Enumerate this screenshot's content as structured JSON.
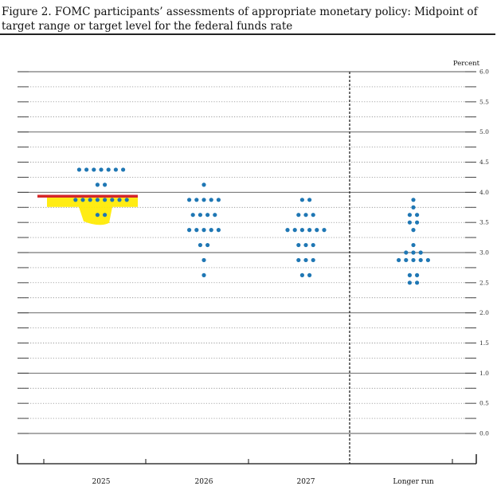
{
  "figure": {
    "title": "Figure 2.  FOMC participants’ assessments of appropriate monetary policy: Midpoint of target range or target level for the federal funds rate"
  },
  "chart_data": {
    "type": "scatter",
    "title": "Figure 2.  FOMC participants’ assessments of appropriate monetary policy: Midpoint of target range or target level for the federal funds rate",
    "ylabel": "Percent",
    "ylim": [
      0.0,
      6.0
    ],
    "yticks": [
      "0.0",
      "0.5",
      "1.0",
      "1.5",
      "2.0",
      "2.5",
      "3.0",
      "3.5",
      "4.0",
      "4.5",
      "5.0",
      "5.5",
      "6.0"
    ],
    "categories": [
      "2025",
      "2026",
      "2027",
      "Longer run"
    ],
    "grid": true,
    "colors": {
      "dots": "#1f77b4",
      "current_rate_line": "#d62728",
      "highlight": "#ffea00"
    },
    "current_rate": 3.875,
    "highlight_category": "2025",
    "dots": [
      {
        "category": "2025",
        "y": 4.375,
        "count": 7
      },
      {
        "category": "2025",
        "y": 4.125,
        "count": 2
      },
      {
        "category": "2025",
        "y": 3.875,
        "count": 8
      },
      {
        "category": "2025",
        "y": 3.625,
        "count": 2
      },
      {
        "category": "2026",
        "y": 4.125,
        "count": 1
      },
      {
        "category": "2026",
        "y": 3.875,
        "count": 5
      },
      {
        "category": "2026",
        "y": 3.625,
        "count": 4
      },
      {
        "category": "2026",
        "y": 3.375,
        "count": 5
      },
      {
        "category": "2026",
        "y": 3.125,
        "count": 2
      },
      {
        "category": "2026",
        "y": 2.875,
        "count": 1
      },
      {
        "category": "2026",
        "y": 2.625,
        "count": 1
      },
      {
        "category": "2027",
        "y": 3.875,
        "count": 2
      },
      {
        "category": "2027",
        "y": 3.625,
        "count": 3
      },
      {
        "category": "2027",
        "y": 3.375,
        "count": 6
      },
      {
        "category": "2027",
        "y": 3.125,
        "count": 3
      },
      {
        "category": "2027",
        "y": 2.875,
        "count": 3
      },
      {
        "category": "2027",
        "y": 2.625,
        "count": 2
      },
      {
        "category": "Longer run",
        "y": 3.875,
        "count": 1
      },
      {
        "category": "Longer run",
        "y": 3.75,
        "count": 1
      },
      {
        "category": "Longer run",
        "y": 3.625,
        "count": 2
      },
      {
        "category": "Longer run",
        "y": 3.5,
        "count": 2
      },
      {
        "category": "Longer run",
        "y": 3.375,
        "count": 1
      },
      {
        "category": "Longer run",
        "y": 3.125,
        "count": 1
      },
      {
        "category": "Longer run",
        "y": 3.0,
        "count": 3
      },
      {
        "category": "Longer run",
        "y": 2.875,
        "count": 5
      },
      {
        "category": "Longer run",
        "y": 2.625,
        "count": 2
      },
      {
        "category": "Longer run",
        "y": 2.5,
        "count": 2
      }
    ]
  }
}
